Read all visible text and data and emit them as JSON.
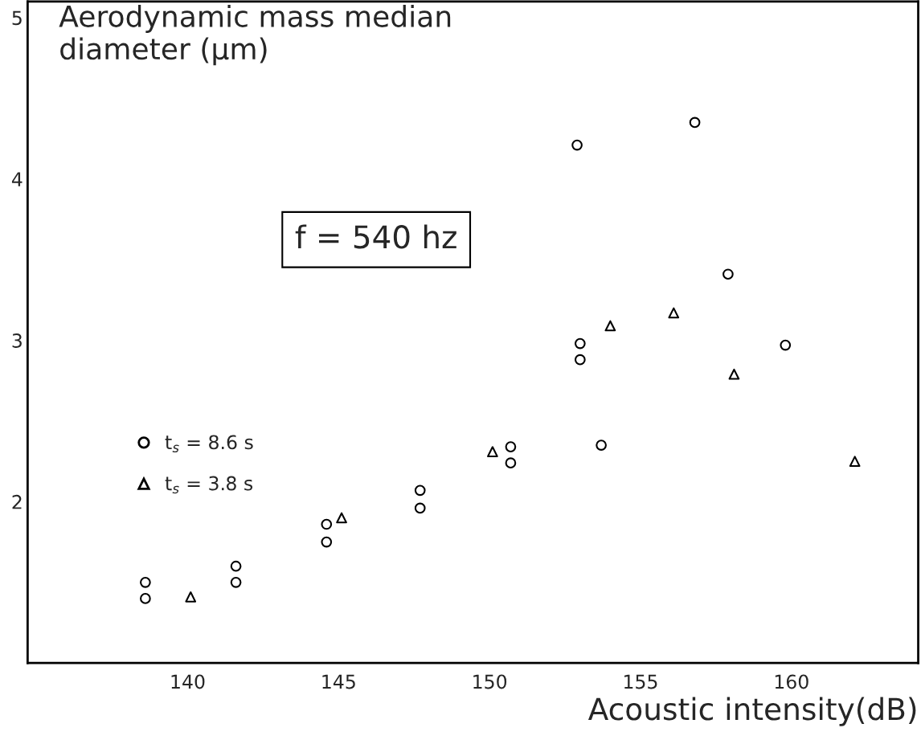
{
  "chart_data": {
    "type": "scatter",
    "xlabel": "Acoustic intensity(dB)",
    "ylabel": "Aerodynamic mass median\ndiameter (µm)",
    "annotations": [
      "f = 540 hz"
    ],
    "xlim": [
      134.7,
      164.2
    ],
    "ylim": [
      1.0,
      5.1
    ],
    "xticks": [
      140,
      145,
      150,
      155,
      160
    ],
    "yticks": [
      2,
      3,
      4,
      5
    ],
    "grid": false,
    "legend": "left",
    "series": [
      {
        "name": "t$_{s}$ = 8.6 s",
        "color": "#000000",
        "marker": "circle",
        "x": [
          152.9,
          156.8,
          157.9,
          159.8,
          153.7,
          153.0,
          153.0,
          150.7,
          150.7,
          147.7,
          147.7,
          144.6,
          144.6,
          141.6,
          141.6,
          138.6,
          138.6
        ],
        "values": [
          4.21,
          4.35,
          3.41,
          2.97,
          2.35,
          2.98,
          2.88,
          2.34,
          2.24,
          2.07,
          1.96,
          1.86,
          1.75,
          1.6,
          1.5,
          1.5,
          1.4
        ]
      },
      {
        "name": "t$_{s}$ = 3.8 s",
        "color": "#000000",
        "marker": "triangle",
        "x": [
          140.1,
          145.1,
          150.1,
          154.0,
          156.1,
          158.1,
          162.1
        ],
        "values": [
          1.41,
          1.9,
          2.31,
          3.09,
          3.17,
          2.79,
          2.25
        ]
      }
    ]
  }
}
